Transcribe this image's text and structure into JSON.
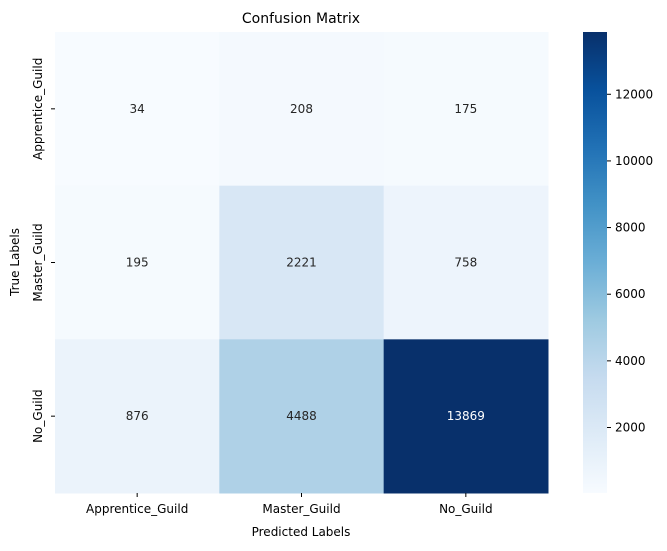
{
  "chart_data": {
    "type": "heatmap",
    "title": "Confusion Matrix",
    "xlabel": "Predicted Labels",
    "ylabel": "True Labels",
    "x_categories": [
      "Apprentice_Guild",
      "Master_Guild",
      "No_Guild"
    ],
    "y_categories": [
      "Apprentice_Guild",
      "Master_Guild",
      "No_Guild"
    ],
    "values": [
      [
        34,
        208,
        175
      ],
      [
        195,
        2221,
        758
      ],
      [
        876,
        4488,
        13869
      ]
    ],
    "colormap": "Blues",
    "color_range": [
      34,
      13869
    ],
    "colorbar_ticks": [
      2000,
      4000,
      6000,
      8000,
      10000,
      12000
    ],
    "grid": false
  }
}
